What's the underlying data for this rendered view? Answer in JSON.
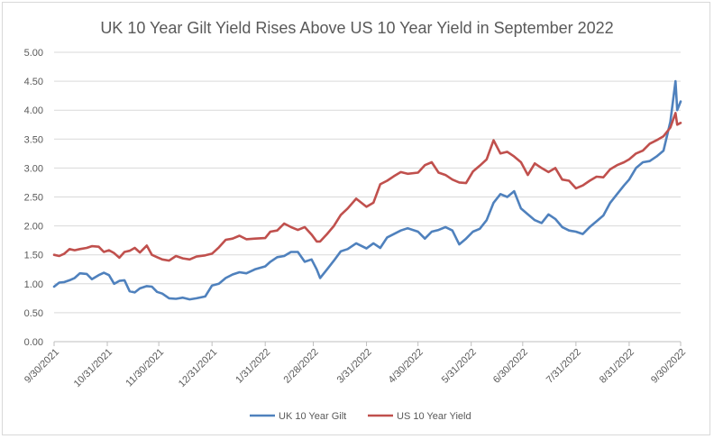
{
  "chart_data": {
    "type": "line",
    "title": "UK 10 Year Gilt Yield Rises Above US 10 Year Yield in September 2022",
    "xlabel": "",
    "ylabel": "",
    "ylim": [
      0,
      5
    ],
    "yticks": [
      "0.00",
      "0.50",
      "1.00",
      "1.50",
      "2.00",
      "2.50",
      "3.00",
      "3.50",
      "4.00",
      "4.50",
      "5.00"
    ],
    "xlim": [
      "9/30/2021",
      "9/30/2022"
    ],
    "xticks": [
      "9/30/2021",
      "10/31/2021",
      "11/30/2021",
      "12/31/2021",
      "1/31/2022",
      "2/28/2022",
      "3/31/2022",
      "4/30/2022",
      "5/31/2022",
      "6/30/2022",
      "7/31/2022",
      "8/31/2022",
      "9/30/2022"
    ],
    "grid": true,
    "legend_position": "bottom",
    "series": [
      {
        "name": "UK 10 Year Gilt",
        "color": "#4f81bd",
        "points": [
          [
            "2021-09-30",
            0.95
          ],
          [
            "2021-10-03",
            1.02
          ],
          [
            "2021-10-06",
            1.03
          ],
          [
            "2021-10-09",
            1.06
          ],
          [
            "2021-10-12",
            1.1
          ],
          [
            "2021-10-15",
            1.18
          ],
          [
            "2021-10-19",
            1.17
          ],
          [
            "2021-10-22",
            1.08
          ],
          [
            "2021-10-26",
            1.15
          ],
          [
            "2021-10-29",
            1.19
          ],
          [
            "2021-11-01",
            1.15
          ],
          [
            "2021-11-04",
            1.0
          ],
          [
            "2021-11-07",
            1.05
          ],
          [
            "2021-11-10",
            1.06
          ],
          [
            "2021-11-13",
            0.87
          ],
          [
            "2021-11-16",
            0.85
          ],
          [
            "2021-11-19",
            0.92
          ],
          [
            "2021-11-23",
            0.96
          ],
          [
            "2021-11-26",
            0.95
          ],
          [
            "2021-11-29",
            0.86
          ],
          [
            "2021-12-02",
            0.83
          ],
          [
            "2021-12-06",
            0.75
          ],
          [
            "2021-12-10",
            0.74
          ],
          [
            "2021-12-14",
            0.76
          ],
          [
            "2021-12-18",
            0.73
          ],
          [
            "2021-12-22",
            0.75
          ],
          [
            "2021-12-27",
            0.78
          ],
          [
            "2021-12-31",
            0.97
          ],
          [
            "2022-01-04",
            1.0
          ],
          [
            "2022-01-08",
            1.1
          ],
          [
            "2022-01-12",
            1.16
          ],
          [
            "2022-01-16",
            1.2
          ],
          [
            "2022-01-20",
            1.18
          ],
          [
            "2022-01-25",
            1.25
          ],
          [
            "2022-01-31",
            1.3
          ],
          [
            "2022-02-03",
            1.38
          ],
          [
            "2022-02-07",
            1.46
          ],
          [
            "2022-02-11",
            1.48
          ],
          [
            "2022-02-15",
            1.55
          ],
          [
            "2022-02-19",
            1.55
          ],
          [
            "2022-02-23",
            1.38
          ],
          [
            "2022-02-27",
            1.42
          ],
          [
            "2022-03-02",
            1.25
          ],
          [
            "2022-03-04",
            1.1
          ],
          [
            "2022-03-08",
            1.25
          ],
          [
            "2022-03-12",
            1.4
          ],
          [
            "2022-03-16",
            1.56
          ],
          [
            "2022-03-20",
            1.6
          ],
          [
            "2022-03-25",
            1.7
          ],
          [
            "2022-03-31",
            1.61
          ],
          [
            "2022-04-04",
            1.7
          ],
          [
            "2022-04-08",
            1.62
          ],
          [
            "2022-04-12",
            1.8
          ],
          [
            "2022-04-16",
            1.86
          ],
          [
            "2022-04-20",
            1.92
          ],
          [
            "2022-04-24",
            1.96
          ],
          [
            "2022-04-30",
            1.9
          ],
          [
            "2022-05-04",
            1.78
          ],
          [
            "2022-05-08",
            1.9
          ],
          [
            "2022-05-12",
            1.93
          ],
          [
            "2022-05-16",
            1.98
          ],
          [
            "2022-05-20",
            1.92
          ],
          [
            "2022-05-24",
            1.68
          ],
          [
            "2022-05-28",
            1.78
          ],
          [
            "2022-06-01",
            1.9
          ],
          [
            "2022-06-05",
            1.95
          ],
          [
            "2022-06-09",
            2.1
          ],
          [
            "2022-06-13",
            2.4
          ],
          [
            "2022-06-17",
            2.55
          ],
          [
            "2022-06-21",
            2.5
          ],
          [
            "2022-06-25",
            2.6
          ],
          [
            "2022-06-29",
            2.3
          ],
          [
            "2022-07-03",
            2.2
          ],
          [
            "2022-07-07",
            2.1
          ],
          [
            "2022-07-11",
            2.05
          ],
          [
            "2022-07-15",
            2.2
          ],
          [
            "2022-07-19",
            2.12
          ],
          [
            "2022-07-23",
            1.98
          ],
          [
            "2022-07-27",
            1.92
          ],
          [
            "2022-07-31",
            1.9
          ],
          [
            "2022-08-04",
            1.86
          ],
          [
            "2022-08-08",
            1.98
          ],
          [
            "2022-08-12",
            2.08
          ],
          [
            "2022-08-16",
            2.18
          ],
          [
            "2022-08-20",
            2.4
          ],
          [
            "2022-08-24",
            2.55
          ],
          [
            "2022-08-28",
            2.7
          ],
          [
            "2022-08-31",
            2.8
          ],
          [
            "2022-09-04",
            3.0
          ],
          [
            "2022-09-08",
            3.1
          ],
          [
            "2022-09-12",
            3.12
          ],
          [
            "2022-09-16",
            3.2
          ],
          [
            "2022-09-20",
            3.3
          ],
          [
            "2022-09-24",
            3.8
          ],
          [
            "2022-09-27",
            4.5
          ],
          [
            "2022-09-28",
            4.0
          ],
          [
            "2022-09-30",
            4.15
          ]
        ]
      },
      {
        "name": "US 10 Year Yield",
        "color": "#c0504d",
        "points": [
          [
            "2021-09-30",
            1.5
          ],
          [
            "2021-10-03",
            1.48
          ],
          [
            "2021-10-06",
            1.52
          ],
          [
            "2021-10-09",
            1.6
          ],
          [
            "2021-10-12",
            1.58
          ],
          [
            "2021-10-15",
            1.6
          ],
          [
            "2021-10-19",
            1.62
          ],
          [
            "2021-10-22",
            1.65
          ],
          [
            "2021-10-26",
            1.64
          ],
          [
            "2021-10-29",
            1.55
          ],
          [
            "2021-11-01",
            1.58
          ],
          [
            "2021-11-04",
            1.53
          ],
          [
            "2021-11-07",
            1.45
          ],
          [
            "2021-11-10",
            1.55
          ],
          [
            "2021-11-13",
            1.57
          ],
          [
            "2021-11-16",
            1.62
          ],
          [
            "2021-11-19",
            1.54
          ],
          [
            "2021-11-23",
            1.66
          ],
          [
            "2021-11-26",
            1.5
          ],
          [
            "2021-11-29",
            1.46
          ],
          [
            "2021-12-02",
            1.42
          ],
          [
            "2021-12-06",
            1.4
          ],
          [
            "2021-12-10",
            1.48
          ],
          [
            "2021-12-14",
            1.44
          ],
          [
            "2021-12-18",
            1.42
          ],
          [
            "2021-12-22",
            1.47
          ],
          [
            "2021-12-27",
            1.49
          ],
          [
            "2021-12-31",
            1.52
          ],
          [
            "2022-01-04",
            1.63
          ],
          [
            "2022-01-08",
            1.76
          ],
          [
            "2022-01-12",
            1.78
          ],
          [
            "2022-01-16",
            1.83
          ],
          [
            "2022-01-20",
            1.77
          ],
          [
            "2022-01-25",
            1.78
          ],
          [
            "2022-01-31",
            1.79
          ],
          [
            "2022-02-03",
            1.9
          ],
          [
            "2022-02-07",
            1.92
          ],
          [
            "2022-02-11",
            2.04
          ],
          [
            "2022-02-15",
            1.98
          ],
          [
            "2022-02-19",
            1.93
          ],
          [
            "2022-02-23",
            1.98
          ],
          [
            "2022-02-27",
            1.85
          ],
          [
            "2022-03-02",
            1.73
          ],
          [
            "2022-03-04",
            1.73
          ],
          [
            "2022-03-08",
            1.86
          ],
          [
            "2022-03-12",
            2.0
          ],
          [
            "2022-03-16",
            2.19
          ],
          [
            "2022-03-20",
            2.3
          ],
          [
            "2022-03-25",
            2.47
          ],
          [
            "2022-03-31",
            2.33
          ],
          [
            "2022-04-04",
            2.4
          ],
          [
            "2022-04-08",
            2.72
          ],
          [
            "2022-04-12",
            2.78
          ],
          [
            "2022-04-16",
            2.86
          ],
          [
            "2022-04-20",
            2.93
          ],
          [
            "2022-04-24",
            2.9
          ],
          [
            "2022-04-30",
            2.92
          ],
          [
            "2022-05-04",
            3.05
          ],
          [
            "2022-05-08",
            3.1
          ],
          [
            "2022-05-12",
            2.92
          ],
          [
            "2022-05-16",
            2.88
          ],
          [
            "2022-05-20",
            2.8
          ],
          [
            "2022-05-24",
            2.75
          ],
          [
            "2022-05-28",
            2.74
          ],
          [
            "2022-06-01",
            2.94
          ],
          [
            "2022-06-05",
            3.04
          ],
          [
            "2022-06-09",
            3.15
          ],
          [
            "2022-06-13",
            3.48
          ],
          [
            "2022-06-17",
            3.25
          ],
          [
            "2022-06-21",
            3.28
          ],
          [
            "2022-06-25",
            3.2
          ],
          [
            "2022-06-29",
            3.1
          ],
          [
            "2022-07-03",
            2.88
          ],
          [
            "2022-07-07",
            3.08
          ],
          [
            "2022-07-11",
            3.0
          ],
          [
            "2022-07-15",
            2.93
          ],
          [
            "2022-07-19",
            3.0
          ],
          [
            "2022-07-23",
            2.8
          ],
          [
            "2022-07-27",
            2.78
          ],
          [
            "2022-07-31",
            2.65
          ],
          [
            "2022-08-04",
            2.7
          ],
          [
            "2022-08-08",
            2.78
          ],
          [
            "2022-08-12",
            2.85
          ],
          [
            "2022-08-16",
            2.84
          ],
          [
            "2022-08-20",
            2.98
          ],
          [
            "2022-08-24",
            3.05
          ],
          [
            "2022-08-28",
            3.1
          ],
          [
            "2022-08-31",
            3.15
          ],
          [
            "2022-09-04",
            3.25
          ],
          [
            "2022-09-08",
            3.3
          ],
          [
            "2022-09-12",
            3.42
          ],
          [
            "2022-09-16",
            3.48
          ],
          [
            "2022-09-20",
            3.55
          ],
          [
            "2022-09-24",
            3.7
          ],
          [
            "2022-09-27",
            3.95
          ],
          [
            "2022-09-28",
            3.75
          ],
          [
            "2022-09-30",
            3.78
          ]
        ]
      }
    ]
  }
}
